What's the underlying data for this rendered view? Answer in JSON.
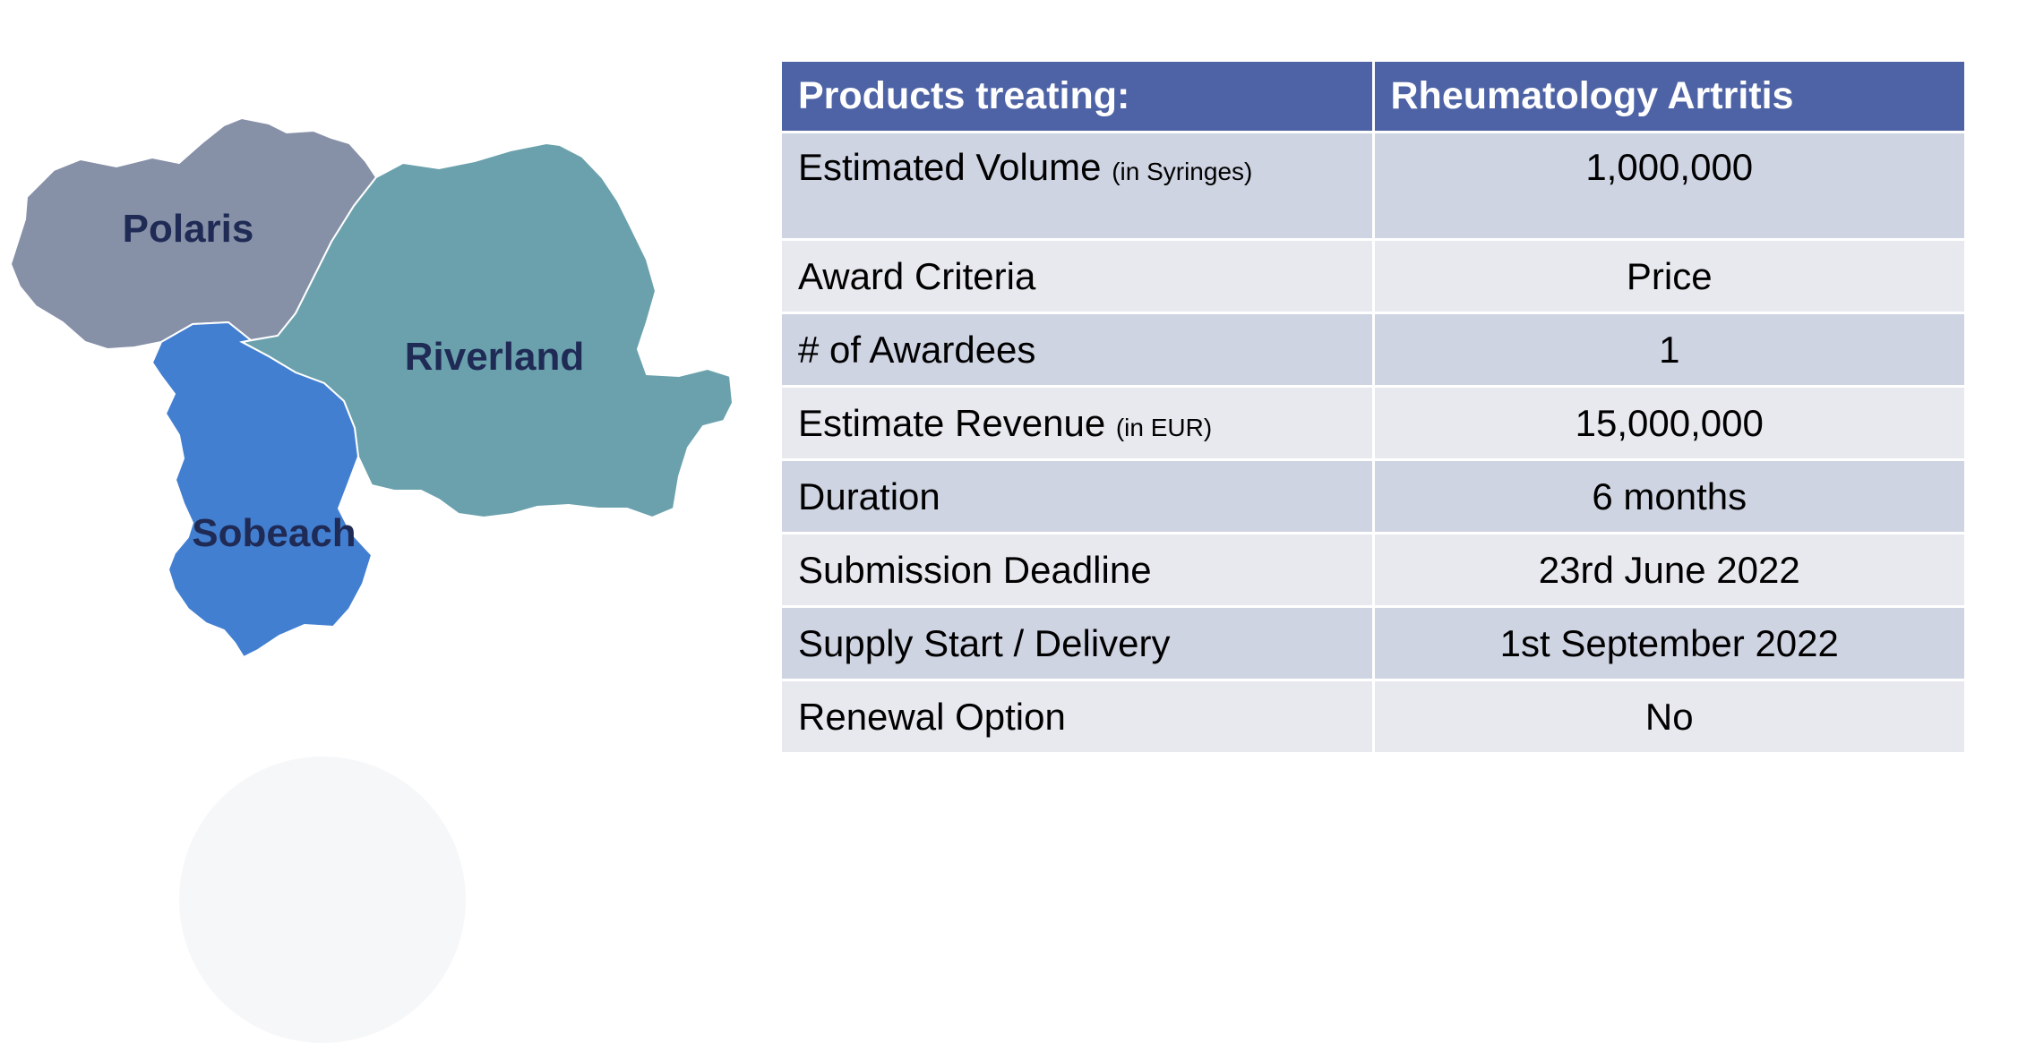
{
  "map": {
    "regions": [
      {
        "id": "polaris",
        "label": "Polaris",
        "color": "#8690a7"
      },
      {
        "id": "riverland",
        "label": "Riverland",
        "color": "#6aa1ad"
      },
      {
        "id": "sobeach",
        "label": "Sobeach",
        "color": "#437fd1"
      }
    ],
    "label_color": "#1f2a55"
  },
  "table": {
    "header": {
      "key": "Products treating:",
      "value": "Rheumatology Artritis"
    },
    "header_color": "#4e63a5",
    "rows": [
      {
        "key": "Estimated Volume",
        "unit": "(in Syringes)",
        "value": "1,000,000"
      },
      {
        "key": "Award Criteria",
        "value": "Price"
      },
      {
        "key": "# of Awardees",
        "value": "1"
      },
      {
        "key": "Estimate Revenue",
        "unit": "(in EUR)",
        "value": "15,000,000"
      },
      {
        "key": "Duration",
        "value": "6 months"
      },
      {
        "key": "Submission Deadline",
        "value": "23rd June 2022"
      },
      {
        "key": "Supply Start / Delivery",
        "value": "1st September 2022"
      },
      {
        "key": "Renewal Option",
        "value": "No"
      }
    ]
  }
}
